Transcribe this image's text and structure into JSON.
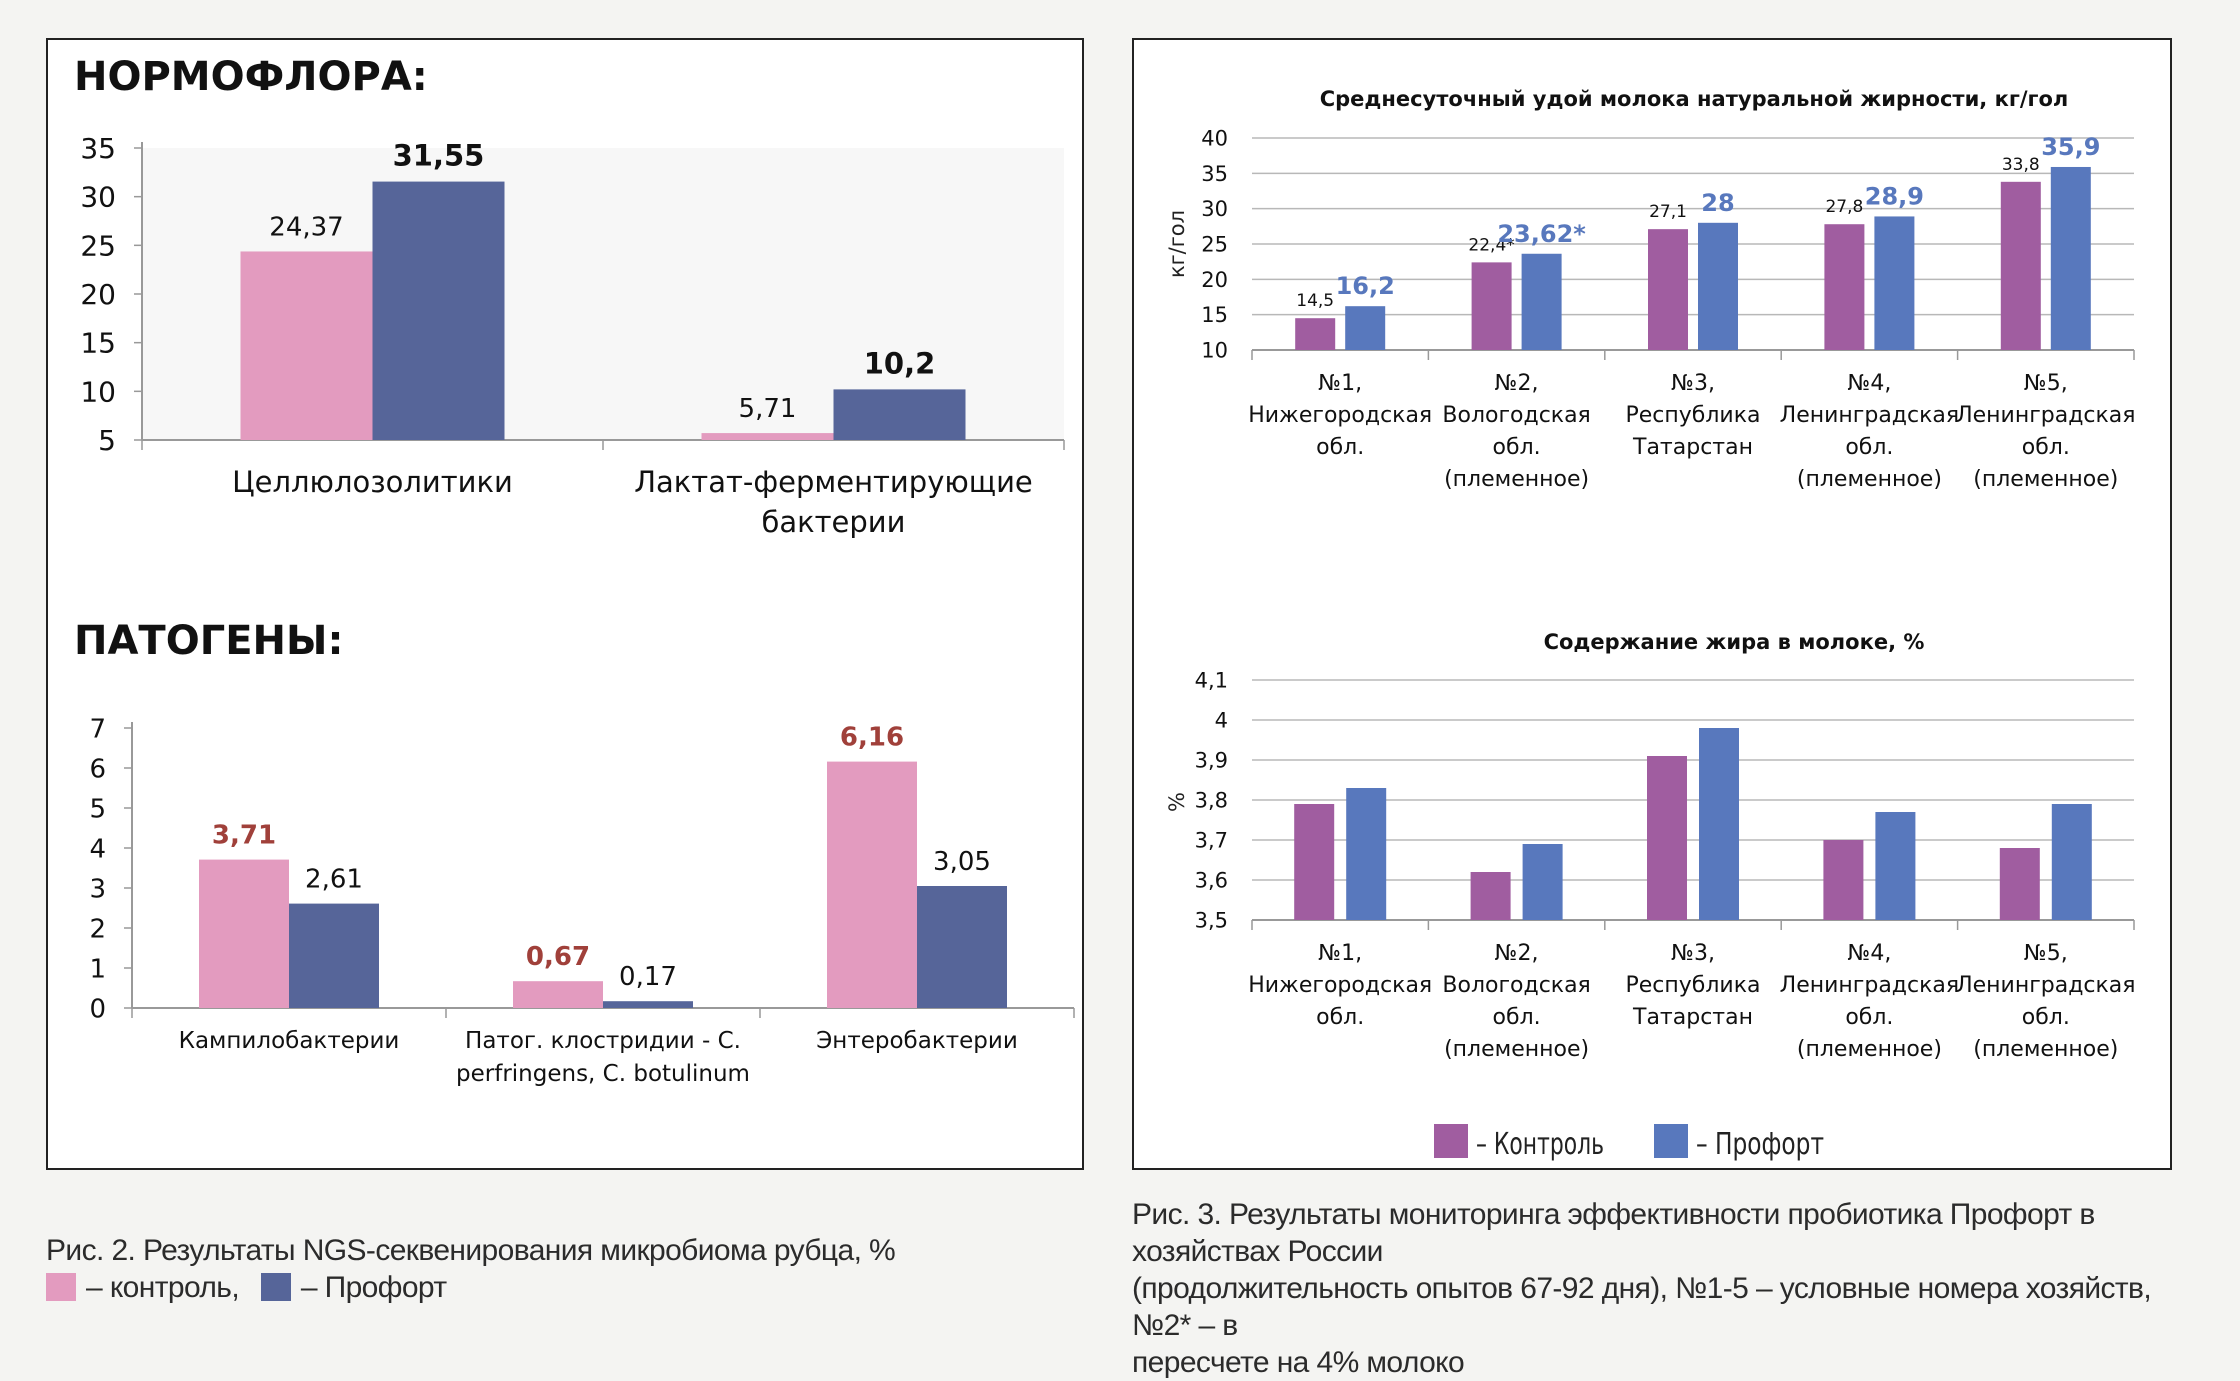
{
  "left_panel": {
    "normoflora_heading": "НОРМОФЛОРА:",
    "pathogens_heading": "ПАТОГЕНЫ:"
  },
  "right_panel": {
    "legend": [
      {
        "label": "– Контроль",
        "color": "#a05da0"
      },
      {
        "label": "– Профорт",
        "color": "#5878bd"
      }
    ]
  },
  "captions": {
    "left_line1": "Рис. 2. Результаты NGS-секвенирования микробиома рубца, %",
    "left_legend_control": "– контроль,",
    "left_legend_profort": "– Профорт",
    "right_line1": "Рис. 3. Результаты мониторинга эффективности пробиотика Профорт в хозяйствах России",
    "right_line2": "(продолжительность опытов 67-92 дня), №1-5 – условные номера хозяйств, №2* – в",
    "right_line3": "пересчете на 4% молоко"
  },
  "colors": {
    "left_control": "#e39bbf",
    "left_profort": "#566599",
    "pathogen_control_label": "#a0403a",
    "right_control": "#a05da0",
    "right_profort": "#5878bd",
    "right_profort_label": "#5878bd"
  },
  "chart_data": [
    {
      "id": "normoflora",
      "type": "bar",
      "categories": [
        [
          "Целлюлозолитики"
        ],
        [
          "Лактат-ферментирующие",
          "бактерии"
        ]
      ],
      "series": [
        {
          "values": [
            24.37,
            5.71
          ],
          "labels": [
            "24,37",
            "5,71"
          ]
        },
        {
          "values": [
            31.55,
            10.2
          ],
          "labels": [
            "31,55",
            "10,2"
          ]
        }
      ],
      "ylim": [
        5,
        35
      ],
      "yticks": [
        "5",
        "10",
        "15",
        "20",
        "25",
        "30",
        "35"
      ],
      "grid": false
    },
    {
      "id": "pathogens",
      "type": "bar",
      "categories": [
        [
          "Кампилобактерии"
        ],
        [
          "Патог. клостридии - C.",
          "perfringens, C. botulinum"
        ],
        [
          "Энтеробактерии"
        ]
      ],
      "series": [
        {
          "values": [
            3.71,
            0.67,
            6.16
          ],
          "labels": [
            "3,71",
            "0,67",
            "6,16"
          ]
        },
        {
          "values": [
            2.61,
            0.17,
            3.05
          ],
          "labels": [
            "2,61",
            "0,17",
            "3,05"
          ]
        }
      ],
      "ylim": [
        0,
        7
      ],
      "yticks": [
        "0",
        "1",
        "2",
        "3",
        "4",
        "5",
        "6",
        "7"
      ],
      "grid": false
    },
    {
      "id": "milk_yield",
      "type": "bar",
      "title": "Среднесуточный удой молока натуральной жирности, кг/гол",
      "ylabel": "кг/гол",
      "categories": [
        [
          "№1,",
          "Нижегородская",
          "обл."
        ],
        [
          "№2,",
          "Вологодская",
          "обл.",
          "(племенное)"
        ],
        [
          "№3,",
          "Республика",
          "Татарстан"
        ],
        [
          "№4,",
          "Ленинградская",
          "обл.",
          "(племенное)"
        ],
        [
          "№5,",
          "Ленинградская",
          "обл.",
          "(племенное)"
        ]
      ],
      "series": [
        {
          "name": "Контроль",
          "values": [
            14.5,
            22.4,
            27.1,
            27.8,
            33.8
          ],
          "labels": [
            "14,5",
            "22,4*",
            "27,1",
            "27,8",
            "33,8"
          ]
        },
        {
          "name": "Профорт",
          "values": [
            16.2,
            23.62,
            28,
            28.9,
            35.9
          ],
          "labels": [
            "16,2",
            "23,62*",
            "28",
            "28,9",
            "35,9"
          ]
        }
      ],
      "ylim": [
        10,
        40
      ],
      "yticks": [
        "10",
        "15",
        "20",
        "25",
        "30",
        "35",
        "40"
      ],
      "grid": true
    },
    {
      "id": "milk_fat",
      "type": "bar",
      "title": "Содержание жира в молоке, %",
      "ylabel": "%",
      "categories": [
        [
          "№1,",
          "Нижегородская",
          "обл."
        ],
        [
          "№2,",
          "Вологодская",
          "обл.",
          "(племенное)"
        ],
        [
          "№3,",
          "Республика",
          "Татарстан"
        ],
        [
          "№4,",
          "Ленинградская",
          "обл.",
          "(племенное)"
        ],
        [
          "№5,",
          "Ленинградская",
          "обл.",
          "(племенное)"
        ]
      ],
      "series": [
        {
          "name": "Контроль",
          "values": [
            3.79,
            3.62,
            3.91,
            3.7,
            3.68
          ]
        },
        {
          "name": "Профорт",
          "values": [
            3.83,
            3.69,
            3.98,
            3.77,
            3.79
          ]
        }
      ],
      "ylim": [
        3.5,
        4.1
      ],
      "yticks": [
        "3,5",
        "3,6",
        "3,7",
        "3,8",
        "3,9",
        "4",
        "4,1"
      ],
      "grid": true
    }
  ]
}
